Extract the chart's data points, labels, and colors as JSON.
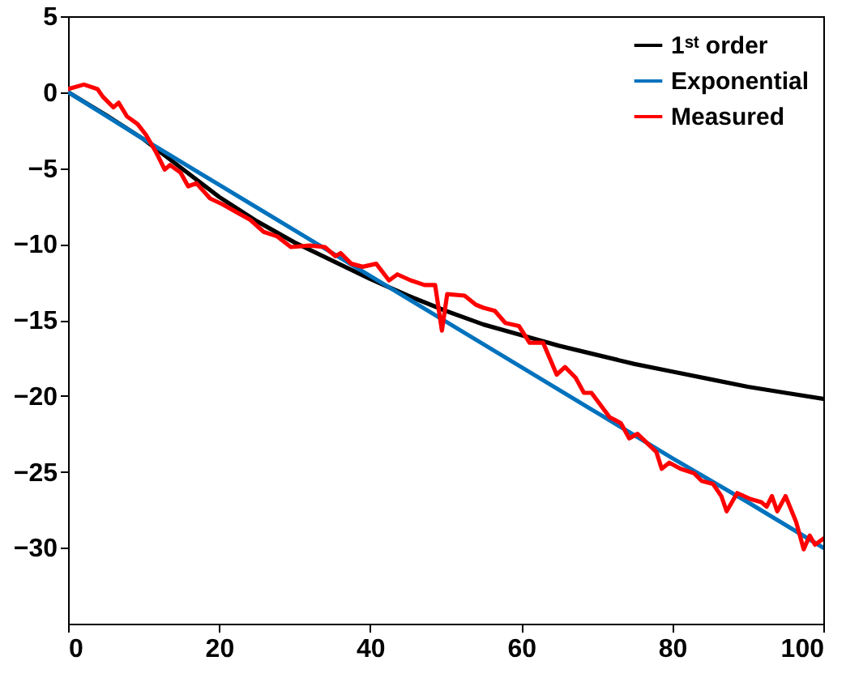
{
  "chart_data": {
    "type": "line",
    "xlim": [
      0,
      100
    ],
    "ylim": [
      -35,
      5
    ],
    "xticks": [
      0,
      20,
      40,
      60,
      80,
      100
    ],
    "yticks": [
      -30,
      -25,
      -20,
      -15,
      -10,
      -5,
      0,
      5
    ],
    "grid": false,
    "legend": "top right",
    "series": [
      {
        "name": "1ˢᵗ order",
        "color": "#000000",
        "x": [
          0,
          5,
          10,
          15,
          20,
          25,
          30,
          35,
          40,
          45,
          50,
          55,
          60,
          65,
          70,
          75,
          80,
          85,
          90,
          95,
          100
        ],
        "values": [
          0,
          -1.5,
          -3.1,
          -5.0,
          -6.9,
          -8.5,
          -9.9,
          -11.1,
          -12.3,
          -13.4,
          -14.4,
          -15.3,
          -16.0,
          -16.7,
          -17.3,
          -17.9,
          -18.4,
          -18.9,
          -19.4,
          -19.8,
          -20.2
        ]
      },
      {
        "name": "Exponential",
        "color": "#0072bd",
        "x": [
          0,
          10,
          20,
          30,
          40,
          50,
          60,
          70,
          80,
          90,
          100
        ],
        "values": [
          0,
          -3.1,
          -6.1,
          -9.1,
          -12.1,
          -15.1,
          -18.1,
          -21.1,
          -24.1,
          -27.0,
          -30.0
        ]
      },
      {
        "name": "Measured",
        "color": "#ff0000",
        "x": [
          0,
          2.1,
          3.9,
          4.6,
          6,
          6.7,
          7.8,
          9.2,
          10.3,
          11.7,
          12.8,
          13.5,
          14.9,
          15.9,
          17,
          18.8,
          20.5,
          22.3,
          24.1,
          25.9,
          27.7,
          29.5,
          32,
          34,
          35.4,
          36.1,
          37.5,
          39,
          40.8,
          42.5,
          43.6,
          45.4,
          47.2,
          48.6,
          49.5,
          50.2,
          52.5,
          54,
          55,
          56.5,
          57.9,
          59.7,
          61.1,
          62.9,
          64.7,
          65.8,
          67.2,
          68.3,
          69.3,
          71.7,
          73.2,
          74.3,
          75.4,
          77.9,
          78.6,
          79.6,
          81.1,
          82.9,
          83.9,
          85.4,
          86.5,
          87.2,
          88.6,
          90.4,
          91.8,
          92.5,
          93.2,
          93.9,
          95,
          96.4,
          97.4,
          98.2,
          98.9,
          100
        ],
        "values": [
          0.2,
          0.5,
          0.2,
          -0.3,
          -1.0,
          -0.7,
          -1.6,
          -2.1,
          -2.8,
          -4.0,
          -5.1,
          -4.8,
          -5.3,
          -6.2,
          -6.0,
          -7.0,
          -7.4,
          -7.9,
          -8.4,
          -9.2,
          -9.5,
          -10.2,
          -10.1,
          -10.2,
          -10.8,
          -10.6,
          -11.3,
          -11.5,
          -11.3,
          -12.4,
          -12.0,
          -12.4,
          -12.7,
          -12.7,
          -15.7,
          -13.3,
          -13.4,
          -14.0,
          -14.2,
          -14.4,
          -15.2,
          -15.4,
          -16.5,
          -16.5,
          -18.6,
          -18.1,
          -18.8,
          -19.8,
          -19.8,
          -21.4,
          -21.8,
          -22.8,
          -22.5,
          -23.7,
          -24.8,
          -24.4,
          -24.8,
          -25.1,
          -25.6,
          -25.8,
          -26.6,
          -27.6,
          -26.4,
          -26.8,
          -27.0,
          -27.3,
          -26.6,
          -27.6,
          -26.6,
          -28.3,
          -30.1,
          -29.2,
          -29.8,
          -29.4
        ]
      }
    ]
  }
}
